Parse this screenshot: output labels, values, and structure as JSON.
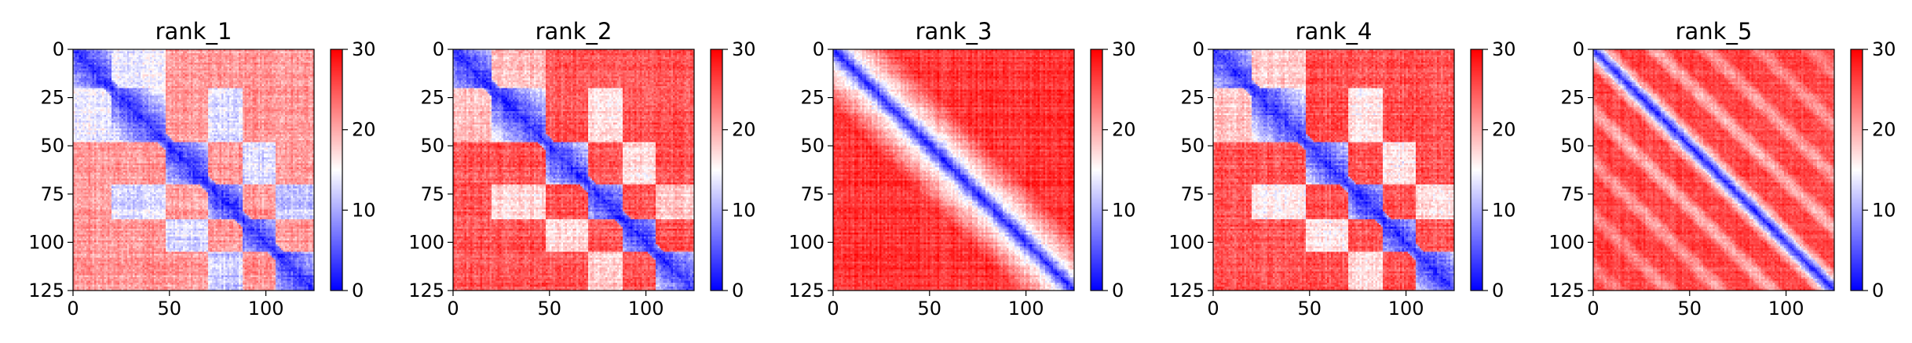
{
  "chart_data": [
    {
      "type": "heatmap",
      "title": "rank_1",
      "pattern": "domains",
      "matrix_size": 125,
      "xlim": [
        0,
        125
      ],
      "ylim": [
        125,
        0
      ],
      "xticks": [
        0,
        50,
        100
      ],
      "yticks": [
        0,
        25,
        50,
        75,
        100,
        125
      ],
      "colorbar": {
        "min": 0,
        "max": 30,
        "ticks": [
          0,
          10,
          20,
          30
        ],
        "colormap": [
          "#0000ff",
          "#ffffff",
          "#ff0000"
        ]
      },
      "domain_boundaries": [
        0,
        20,
        48,
        70,
        88,
        105,
        125
      ],
      "background_level": 21,
      "cross_domain_levels": [
        [
          0,
          1,
          14
        ],
        [
          1,
          3,
          13
        ],
        [
          2,
          4,
          13
        ],
        [
          3,
          5,
          12
        ],
        [
          4,
          6,
          13
        ]
      ]
    },
    {
      "type": "heatmap",
      "title": "rank_2",
      "pattern": "domains",
      "matrix_size": 125,
      "xlim": [
        0,
        125
      ],
      "ylim": [
        125,
        0
      ],
      "xticks": [
        0,
        50,
        100
      ],
      "yticks": [
        0,
        25,
        50,
        75,
        100,
        125
      ],
      "colorbar": {
        "min": 0,
        "max": 30,
        "ticks": [
          0,
          10,
          20,
          30
        ],
        "colormap": [
          "#0000ff",
          "#ffffff",
          "#ff0000"
        ]
      },
      "domain_boundaries": [
        0,
        20,
        48,
        70,
        88,
        105,
        125
      ],
      "background_level": 25,
      "cross_domain_levels": [
        [
          0,
          1,
          19
        ],
        [
          1,
          3,
          17
        ],
        [
          2,
          4,
          17
        ],
        [
          3,
          5,
          18
        ]
      ]
    },
    {
      "type": "heatmap",
      "title": "rank_3",
      "pattern": "diagonal",
      "matrix_size": 125,
      "xlim": [
        0,
        125
      ],
      "ylim": [
        125,
        0
      ],
      "xticks": [
        0,
        50,
        100
      ],
      "yticks": [
        0,
        25,
        50,
        75,
        100,
        125
      ],
      "colorbar": {
        "min": 0,
        "max": 30,
        "ticks": [
          0,
          10,
          20,
          30
        ],
        "colormap": [
          "#0000ff",
          "#ffffff",
          "#ff0000"
        ]
      },
      "band_width": 8,
      "background_level": 27
    },
    {
      "type": "heatmap",
      "title": "rank_4",
      "pattern": "domains",
      "matrix_size": 125,
      "xlim": [
        0,
        125
      ],
      "ylim": [
        125,
        0
      ],
      "xticks": [
        0,
        50,
        100
      ],
      "yticks": [
        0,
        25,
        50,
        75,
        100,
        125
      ],
      "colorbar": {
        "min": 0,
        "max": 30,
        "ticks": [
          0,
          10,
          20,
          30
        ],
        "colormap": [
          "#0000ff",
          "#ffffff",
          "#ff0000"
        ]
      },
      "domain_boundaries": [
        0,
        20,
        48,
        70,
        88,
        105,
        125
      ],
      "background_level": 25,
      "cross_domain_levels": [
        [
          0,
          1,
          18
        ],
        [
          1,
          3,
          16
        ],
        [
          2,
          4,
          16
        ],
        [
          3,
          5,
          17
        ]
      ]
    },
    {
      "type": "heatmap",
      "title": "rank_5",
      "pattern": "stripes",
      "matrix_size": 125,
      "xlim": [
        0,
        125
      ],
      "ylim": [
        125,
        0
      ],
      "xticks": [
        0,
        50,
        100
      ],
      "yticks": [
        0,
        25,
        50,
        75,
        100,
        125
      ],
      "colorbar": {
        "min": 0,
        "max": 30,
        "ticks": [
          0,
          10,
          20,
          30
        ],
        "colormap": [
          "#0000ff",
          "#ffffff",
          "#ff0000"
        ]
      },
      "band_width": 5,
      "stripe_period": 27,
      "background_level": 26
    }
  ]
}
